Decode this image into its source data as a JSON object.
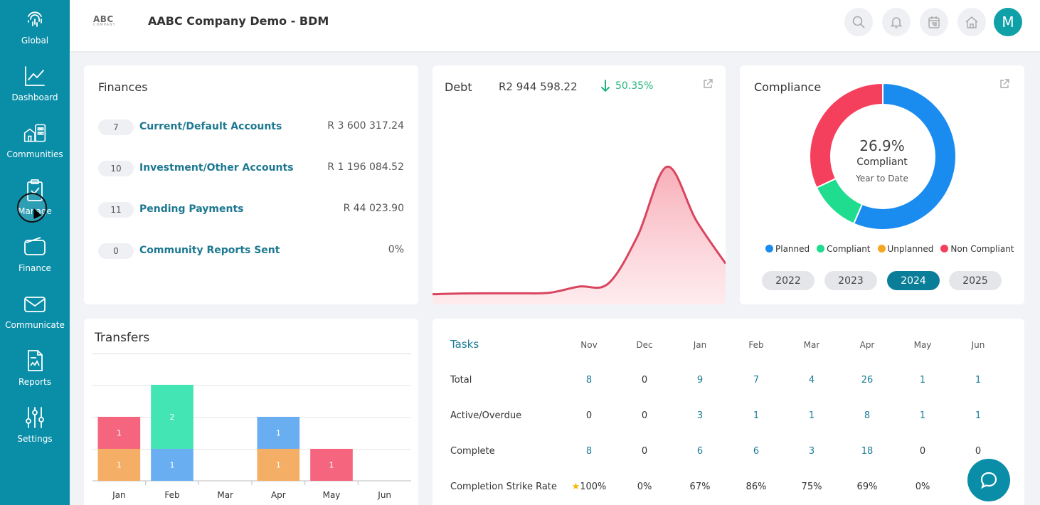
{
  "sidebar": {
    "items": [
      {
        "label": "Global",
        "icon": "fingerprint-icon"
      },
      {
        "label": "Dashboard",
        "icon": "line-chart-icon"
      },
      {
        "label": "Communities",
        "icon": "buildings-icon"
      },
      {
        "label": "Manage",
        "icon": "clipboard-icon"
      },
      {
        "label": "Finance",
        "icon": "wallet-icon"
      },
      {
        "label": "Communicate",
        "icon": "envelope-icon"
      },
      {
        "label": "Reports",
        "icon": "report-icon"
      },
      {
        "label": "Settings",
        "icon": "sliders-icon"
      }
    ]
  },
  "header": {
    "logo_text": "ABC",
    "logo_sub": "COMPANY",
    "company": "AABC Company Demo - BDM",
    "avatar_initial": "M"
  },
  "finances": {
    "title": "Finances",
    "rows": [
      {
        "count": "7",
        "label": "Current/Default Accounts",
        "amount": "R 3 600 317.24"
      },
      {
        "count": "10",
        "label": "Investment/Other Accounts",
        "amount": "R 1 196 084.52"
      },
      {
        "count": "11",
        "label": "Pending Payments",
        "amount": "R 44 023.90"
      },
      {
        "count": "0",
        "label": "Community Reports Sent",
        "amount": "0%"
      }
    ]
  },
  "debt": {
    "title": "Debt",
    "amount": "R2 944 598.22",
    "change": "50.35%",
    "color": "#d9455f"
  },
  "compliance": {
    "title": "Compliance",
    "percent": "26.9%",
    "label": "Compliant",
    "sublabel": "Year to Date",
    "legend": [
      {
        "name": "Planned",
        "color": "#1a8cf0"
      },
      {
        "name": "Compliant",
        "color": "#1fdc8f"
      },
      {
        "name": "Unplanned",
        "color": "#f5a623"
      },
      {
        "name": "Non Compliant",
        "color": "#f5405d"
      }
    ],
    "years": [
      "2022",
      "2023",
      "2024",
      "2025"
    ],
    "active_year": "2024",
    "segments": [
      {
        "name": "Planned",
        "value": 56.5
      },
      {
        "name": "Compliant",
        "value": 11.5
      },
      {
        "name": "Non Compliant",
        "value": 32.0
      }
    ]
  },
  "transfers": {
    "title": "Transfers",
    "months": [
      "Jan",
      "Feb",
      "Mar",
      "Apr",
      "May",
      "Jun"
    ]
  },
  "tasks": {
    "title": "Tasks",
    "months": [
      "Nov",
      "Dec",
      "Jan",
      "Feb",
      "Mar",
      "Apr",
      "May",
      "Jun"
    ],
    "rows": [
      {
        "label": "Total",
        "values": [
          "8",
          "0",
          "9",
          "7",
          "4",
          "26",
          "1",
          "1"
        ]
      },
      {
        "label": "Active/Overdue",
        "values": [
          "0",
          "0",
          "3",
          "1",
          "1",
          "8",
          "1",
          "1"
        ]
      },
      {
        "label": "Complete",
        "values": [
          "8",
          "0",
          "6",
          "6",
          "3",
          "18",
          "0",
          "0"
        ]
      },
      {
        "label": "Completion Strike Rate",
        "values": [
          "100%",
          "0%",
          "67%",
          "86%",
          "75%",
          "69%",
          "0%",
          ""
        ]
      }
    ],
    "star": "★"
  },
  "chart_data": [
    {
      "type": "area",
      "title": "Debt",
      "x": [
        0,
        1,
        2,
        3,
        4,
        5,
        6,
        7,
        8,
        9,
        10
      ],
      "values": [
        2,
        2.5,
        2.6,
        2.6,
        3,
        7,
        9,
        40,
        85,
        50,
        22
      ],
      "ylim": [
        0,
        100
      ],
      "grid": false,
      "color": "#d9455f"
    },
    {
      "type": "bar",
      "title": "Transfers",
      "categories": [
        "Jan",
        "Feb",
        "Mar",
        "Apr",
        "May",
        "Jun"
      ],
      "series": [
        {
          "color": "#f5ae65",
          "values": [
            1,
            0,
            0,
            1,
            0,
            0
          ]
        },
        {
          "color": "#6aaef2",
          "values": [
            0,
            1,
            0,
            1,
            0,
            0
          ]
        },
        {
          "color": "#f5667e",
          "values": [
            1,
            0,
            0,
            0,
            1,
            0
          ]
        },
        {
          "color": "#43e5b5",
          "values": [
            0,
            2,
            0,
            0,
            0,
            0
          ]
        }
      ],
      "ylim": [
        0,
        3
      ],
      "grid": true
    },
    {
      "type": "pie",
      "title": "Compliance",
      "categories": [
        "Planned",
        "Compliant",
        "Non Compliant"
      ],
      "values": [
        56.5,
        11.5,
        32.0
      ]
    }
  ]
}
